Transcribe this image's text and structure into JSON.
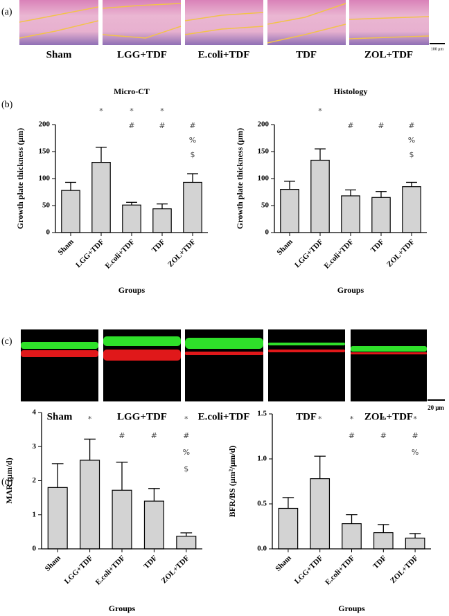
{
  "panels": {
    "a": {
      "label": "(a)",
      "captions": [
        "Sham",
        "LGG+TDF",
        "E.coli+TDF",
        "TDF",
        "ZOL+TDF"
      ],
      "scale_bar": "100 μm"
    },
    "b": {
      "label": "(b)"
    },
    "c": {
      "label": "(c)",
      "captions": [
        "Sham",
        "LGG+TDF",
        "E.coli+TDF",
        "TDF",
        "ZOL+TDF"
      ],
      "scale_bar": "20 μm"
    },
    "d": {
      "label": "(d)"
    }
  },
  "chart_data": [
    {
      "type": "bar",
      "title": "Micro-CT",
      "x_label": "Groups",
      "y_label": "Growth plate thickness (μm)",
      "categories": [
        "Sham",
        "LGG+TDF",
        "E.coli+TDF",
        "TDF",
        "ZOL+TDF"
      ],
      "values": [
        78,
        130,
        51,
        44,
        93
      ],
      "errors": [
        15,
        28,
        5,
        9,
        16
      ],
      "annotations": [
        null,
        [
          "*"
        ],
        [
          "*",
          "#"
        ],
        [
          "*",
          "#"
        ],
        [
          null,
          "#",
          "%",
          "$"
        ]
      ],
      "color": "#d3d3d3",
      "ylim": [
        0,
        200
      ],
      "yticks": [
        0,
        50,
        100,
        150,
        200
      ]
    },
    {
      "type": "bar",
      "title": "Histology",
      "x_label": "Groups",
      "y_label": "Growth plate thickness (μm)",
      "categories": [
        "Sham",
        "LGG+TDF",
        "E.coli+TDF",
        "TDF",
        "ZOL+TDF"
      ],
      "values": [
        80,
        134,
        68,
        65,
        85
      ],
      "errors": [
        15,
        21,
        11,
        11,
        8
      ],
      "annotations": [
        null,
        [
          "*"
        ],
        [
          null,
          "#"
        ],
        [
          null,
          "#"
        ],
        [
          null,
          "#",
          "%",
          "$"
        ]
      ],
      "color": "#d3d3d3",
      "ylim": [
        0,
        200
      ],
      "yticks": [
        0,
        50,
        100,
        150,
        200
      ]
    },
    {
      "type": "bar",
      "x_label": "Groups",
      "y_label": "MAR (μm/d)",
      "categories": [
        "Sham",
        "LGG+TDF",
        "E.coli+TDF",
        "TDF",
        "ZOL+TDF"
      ],
      "values": [
        1.8,
        2.6,
        1.72,
        1.4,
        0.37
      ],
      "errors": [
        0.7,
        0.62,
        0.82,
        0.37,
        0.1
      ],
      "annotations": [
        null,
        [
          "*"
        ],
        [
          null,
          "#"
        ],
        [
          null,
          "#"
        ],
        [
          "*",
          "#",
          "%",
          "$"
        ]
      ],
      "color": "#d3d3d3",
      "ylim": [
        0,
        4
      ],
      "yticks": [
        0,
        1,
        2,
        3,
        4
      ]
    },
    {
      "type": "bar",
      "x_label": "Groups",
      "y_label": "BFR/BS (μm²/μm/d)",
      "categories": [
        "Sham",
        "LGG+TDF",
        "E.coli+TDF",
        "TDF",
        "ZOL+TDF"
      ],
      "values": [
        0.45,
        0.78,
        0.28,
        0.18,
        0.12
      ],
      "errors": [
        0.12,
        0.25,
        0.1,
        0.09,
        0.05
      ],
      "annotations": [
        null,
        [
          "*"
        ],
        [
          "*",
          "#"
        ],
        [
          "*",
          "#"
        ],
        [
          "*",
          "#",
          "%"
        ]
      ],
      "color": "#d3d3d3",
      "ylim": [
        0,
        1.5
      ],
      "yticks": [
        {
          "value": 0,
          "label": "0.0"
        },
        0.5,
        {
          "value": 1,
          "label": "1.0"
        },
        1.5
      ]
    }
  ]
}
